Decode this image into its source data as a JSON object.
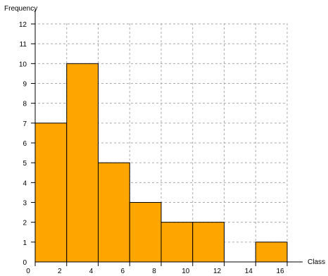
{
  "chart_data": {
    "type": "bar",
    "title": "",
    "xlabel": "Class",
    "ylabel": "Frequency",
    "bins": [
      {
        "start": 0,
        "end": 2,
        "value": 7
      },
      {
        "start": 2,
        "end": 4,
        "value": 10
      },
      {
        "start": 4,
        "end": 6,
        "value": 5
      },
      {
        "start": 6,
        "end": 8,
        "value": 3
      },
      {
        "start": 8,
        "end": 10,
        "value": 2
      },
      {
        "start": 10,
        "end": 12,
        "value": 2
      },
      {
        "start": 12,
        "end": 14,
        "value": 0
      },
      {
        "start": 14,
        "end": 16,
        "value": 1
      }
    ],
    "xlim": [
      0,
      16
    ],
    "ylim": [
      0,
      12
    ],
    "xticks": [
      0,
      2,
      4,
      6,
      8,
      10,
      12,
      14,
      16
    ],
    "yticks": [
      1,
      2,
      3,
      4,
      5,
      6,
      7,
      8,
      9,
      10,
      11,
      12
    ],
    "grid": true,
    "colors": {
      "bar_fill": "#ffa500",
      "bar_stroke": "#000000",
      "grid": "#aaaaaa"
    }
  }
}
